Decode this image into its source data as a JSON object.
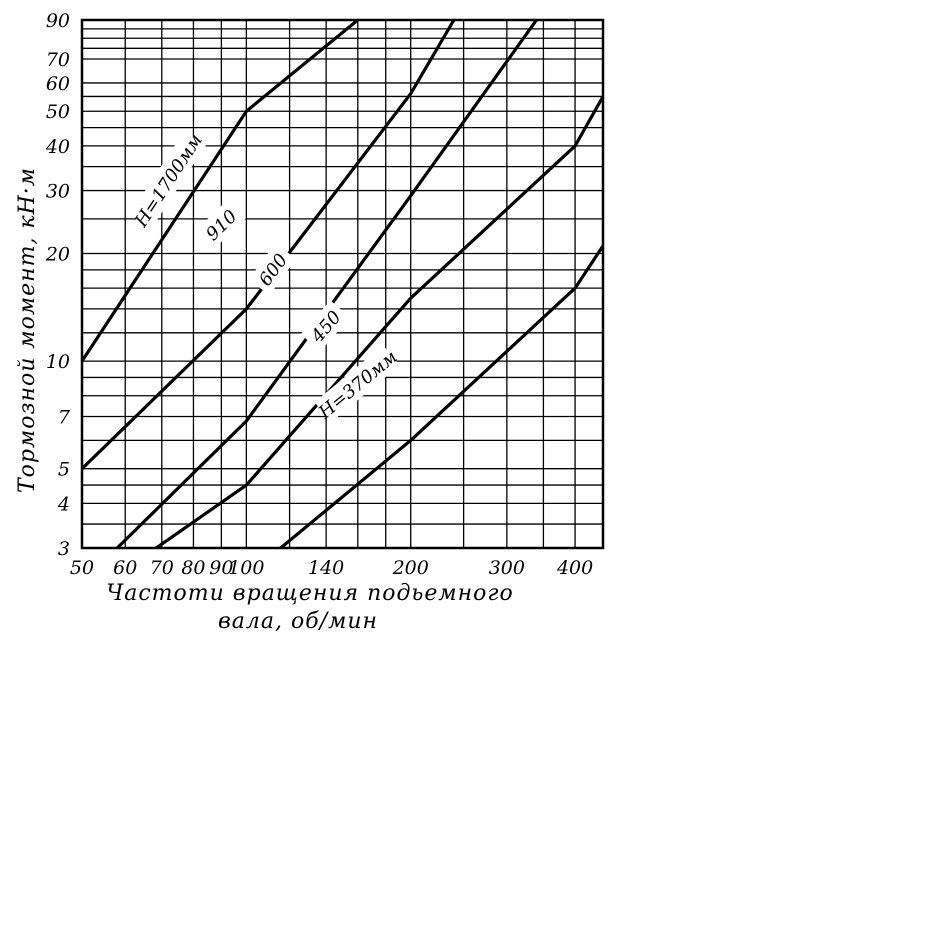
{
  "chart_data": {
    "type": "line",
    "title": "",
    "xlabel_line1": "Частоти вращения подьемного",
    "xlabel_line2": "вала, об/мин",
    "ylabel": "Тормозной момент, кН·м",
    "x_scale": "log",
    "y_scale": "log",
    "xlim": [
      50,
      450
    ],
    "ylim": [
      3,
      90
    ],
    "grid": true,
    "x_ticks": [
      50,
      60,
      70,
      80,
      90,
      100,
      140,
      200,
      300,
      400
    ],
    "x_tick_labels": [
      "50",
      "60",
      "70",
      "80",
      "90",
      "100",
      "140",
      "200",
      "300",
      "400"
    ],
    "y_ticks": [
      3,
      4,
      5,
      7,
      10,
      20,
      30,
      40,
      50,
      60,
      70,
      90
    ],
    "y_tick_labels": [
      "3",
      "4",
      "5",
      "7",
      "10",
      "20",
      "30",
      "40",
      "50",
      "60",
      "70",
      "90"
    ],
    "series": [
      {
        "name": "H=1700мм",
        "x": [
          50,
          100,
          160
        ],
        "y": [
          10,
          50,
          90
        ]
      },
      {
        "name": "910",
        "x": [
          50,
          100,
          200,
          240
        ],
        "y": [
          5,
          14,
          56,
          90
        ]
      },
      {
        "name": "600",
        "x": [
          50,
          100,
          200,
          340
        ],
        "y": [
          2.4,
          6.8,
          29,
          90
        ]
      },
      {
        "name": "450",
        "x": [
          63,
          100,
          200,
          400,
          450
        ],
        "y": [
          2.75,
          4.5,
          15,
          40,
          55
        ]
      },
      {
        "name": "H=370мм",
        "x": [
          100,
          200,
          400,
          450
        ],
        "y": [
          2.5,
          6,
          16,
          21
        ]
      }
    ]
  }
}
